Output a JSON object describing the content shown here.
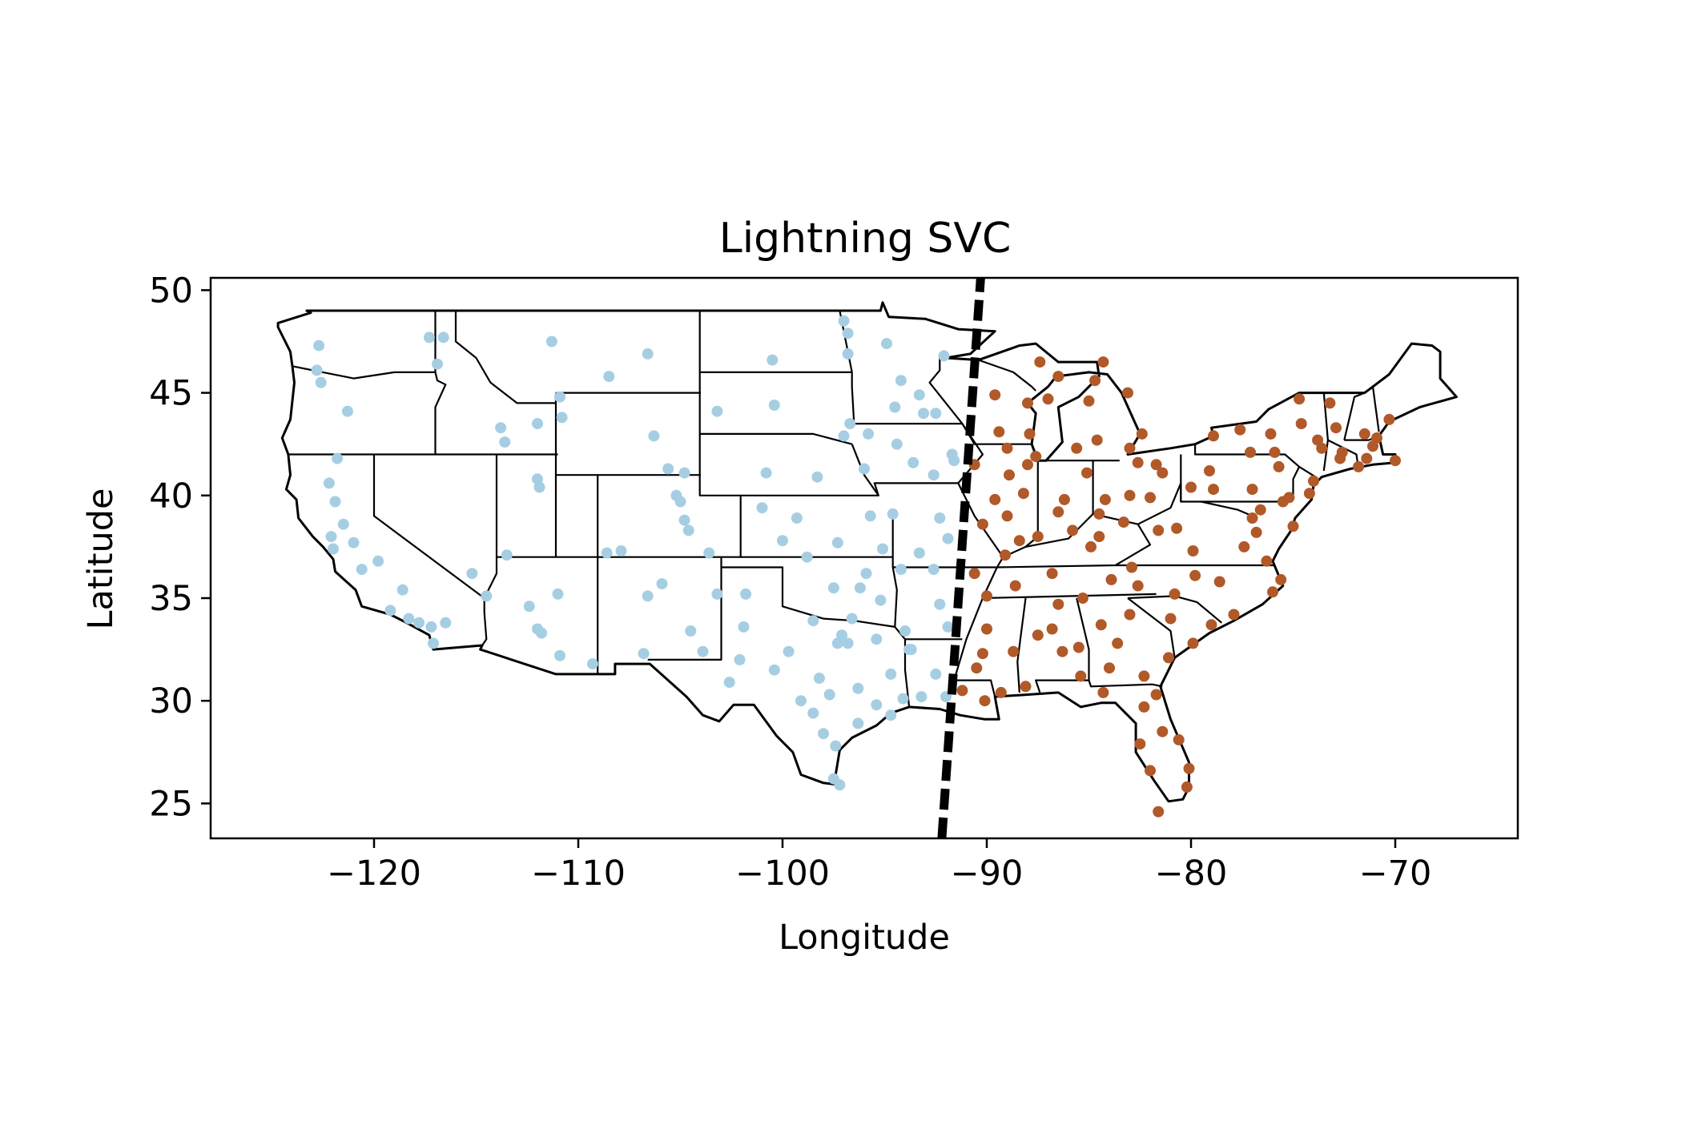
{
  "chart_data": {
    "type": "scatter",
    "title": "Lightning SVC",
    "xlabel": "Longitude",
    "ylabel": "Latitude",
    "xlim": [
      -128,
      -64
    ],
    "ylim": [
      23.3,
      50.6
    ],
    "x_ticks": [
      -120,
      -110,
      -100,
      -90,
      -80,
      -70
    ],
    "x_tick_labels": [
      "−120",
      "−110",
      "−100",
      "−90",
      "−80",
      "−70"
    ],
    "y_ticks": [
      25,
      30,
      35,
      40,
      45,
      50
    ],
    "y_tick_labels": [
      "25",
      "30",
      "35",
      "40",
      "45",
      "50"
    ],
    "grid": false,
    "legend": "none",
    "decision_boundary": {
      "style": "dashed",
      "color": "#000000",
      "points": [
        [
          -92.2,
          23.3
        ],
        [
          -90.3,
          50.6
        ]
      ]
    },
    "basemap": "US state boundaries (contiguous United States)",
    "series": [
      {
        "color": "#a6cee3",
        "points": [
          [
            -122.7,
            47.3
          ],
          [
            -122.8,
            46.1
          ],
          [
            -122.6,
            45.5
          ],
          [
            -121.3,
            44.1
          ],
          [
            -117.3,
            47.7
          ],
          [
            -116.6,
            47.7
          ],
          [
            -116.9,
            46.4
          ],
          [
            -111.3,
            47.5
          ],
          [
            -108.5,
            45.8
          ],
          [
            -106.6,
            46.9
          ],
          [
            -100.5,
            46.6
          ],
          [
            -110.9,
            44.8
          ],
          [
            -112.0,
            43.5
          ],
          [
            -113.8,
            43.3
          ],
          [
            -113.6,
            42.6
          ],
          [
            -110.8,
            43.8
          ],
          [
            -121.8,
            41.8
          ],
          [
            -122.2,
            40.6
          ],
          [
            -121.9,
            39.7
          ],
          [
            -121.5,
            38.6
          ],
          [
            -122.1,
            38.0
          ],
          [
            -122.0,
            37.4
          ],
          [
            -121.0,
            37.7
          ],
          [
            -120.6,
            36.4
          ],
          [
            -119.8,
            36.8
          ],
          [
            -118.6,
            35.4
          ],
          [
            -119.2,
            34.4
          ],
          [
            -118.3,
            34.0
          ],
          [
            -117.8,
            33.8
          ],
          [
            -117.2,
            33.6
          ],
          [
            -117.1,
            32.8
          ],
          [
            -116.5,
            33.8
          ],
          [
            -115.2,
            36.2
          ],
          [
            -114.5,
            35.1
          ],
          [
            -113.5,
            37.1
          ],
          [
            -112.0,
            40.8
          ],
          [
            -111.9,
            40.4
          ],
          [
            -112.0,
            33.5
          ],
          [
            -111.8,
            33.3
          ],
          [
            -110.9,
            32.2
          ],
          [
            -111.0,
            35.2
          ],
          [
            -112.4,
            34.6
          ],
          [
            -109.3,
            31.8
          ],
          [
            -106.6,
            35.1
          ],
          [
            -105.9,
            35.7
          ],
          [
            -106.8,
            32.3
          ],
          [
            -104.5,
            33.4
          ],
          [
            -108.6,
            37.2
          ],
          [
            -107.9,
            37.3
          ],
          [
            -105.0,
            39.7
          ],
          [
            -104.8,
            38.8
          ],
          [
            -104.6,
            38.3
          ],
          [
            -105.2,
            40.0
          ],
          [
            -104.8,
            41.1
          ],
          [
            -106.3,
            42.9
          ],
          [
            -105.6,
            41.3
          ],
          [
            -103.2,
            44.1
          ],
          [
            -100.4,
            44.4
          ],
          [
            -96.7,
            43.5
          ],
          [
            -97.0,
            42.9
          ],
          [
            -96.0,
            41.3
          ],
          [
            -98.3,
            40.9
          ],
          [
            -100.8,
            41.1
          ],
          [
            -101.8,
            35.2
          ],
          [
            -97.5,
            35.5
          ],
          [
            -95.9,
            36.2
          ],
          [
            -97.3,
            37.7
          ],
          [
            -95.7,
            39.0
          ],
          [
            -94.6,
            39.1
          ],
          [
            -101.9,
            33.6
          ],
          [
            -102.1,
            32.0
          ],
          [
            -99.7,
            32.4
          ],
          [
            -97.3,
            32.8
          ],
          [
            -96.8,
            32.8
          ],
          [
            -97.7,
            30.3
          ],
          [
            -98.5,
            29.4
          ],
          [
            -95.4,
            29.8
          ],
          [
            -97.4,
            27.8
          ],
          [
            -97.5,
            26.2
          ],
          [
            -97.2,
            25.9
          ],
          [
            -98.5,
            33.9
          ],
          [
            -94.0,
            33.4
          ],
          [
            -93.7,
            32.5
          ],
          [
            -93.2,
            30.2
          ],
          [
            -94.1,
            30.1
          ],
          [
            -92.3,
            34.7
          ],
          [
            -94.2,
            36.4
          ],
          [
            -93.3,
            37.2
          ],
          [
            -92.3,
            38.9
          ],
          [
            -93.6,
            41.6
          ],
          [
            -91.7,
            42.0
          ],
          [
            -93.3,
            44.9
          ],
          [
            -92.1,
            46.8
          ],
          [
            -94.2,
            45.6
          ],
          [
            -96.8,
            46.9
          ],
          [
            -96.8,
            47.9
          ],
          [
            -97.0,
            48.5
          ],
          [
            -94.9,
            47.4
          ],
          [
            -93.1,
            44.0
          ],
          [
            -92.5,
            44.0
          ],
          [
            -94.5,
            44.3
          ],
          [
            -95.8,
            43.0
          ],
          [
            -94.4,
            42.5
          ],
          [
            -92.6,
            41.0
          ],
          [
            -91.6,
            41.7
          ],
          [
            -96.2,
            35.5
          ],
          [
            -95.2,
            34.9
          ],
          [
            -98.2,
            31.1
          ],
          [
            -96.3,
            30.6
          ],
          [
            -94.7,
            31.3
          ],
          [
            -93.8,
            32.5
          ],
          [
            -92.5,
            31.3
          ],
          [
            -92.0,
            30.2
          ],
          [
            -91.9,
            33.6
          ],
          [
            -95.4,
            33.0
          ],
          [
            -96.6,
            34.0
          ],
          [
            -97.1,
            33.2
          ],
          [
            -99.1,
            30.0
          ],
          [
            -100.4,
            31.5
          ],
          [
            -98.0,
            28.4
          ],
          [
            -96.3,
            28.9
          ],
          [
            -94.7,
            29.3
          ],
          [
            -92.6,
            36.4
          ],
          [
            -91.9,
            37.9
          ],
          [
            -95.1,
            37.4
          ],
          [
            -98.8,
            37.0
          ],
          [
            -100.0,
            37.8
          ],
          [
            -101.0,
            39.4
          ],
          [
            -99.3,
            38.9
          ],
          [
            -103.6,
            37.2
          ],
          [
            -103.2,
            35.2
          ],
          [
            -103.9,
            32.4
          ],
          [
            -102.6,
            30.9
          ]
        ]
      },
      {
        "color": "#b15928",
        "points": [
          [
            -90.2,
            38.6
          ],
          [
            -89.6,
            39.8
          ],
          [
            -88.2,
            40.1
          ],
          [
            -87.6,
            41.9
          ],
          [
            -88.0,
            41.5
          ],
          [
            -89.0,
            42.3
          ],
          [
            -87.9,
            43.0
          ],
          [
            -89.4,
            43.1
          ],
          [
            -88.0,
            44.5
          ],
          [
            -89.6,
            44.9
          ],
          [
            -87.4,
            46.5
          ],
          [
            -84.3,
            46.5
          ],
          [
            -85.6,
            42.3
          ],
          [
            -83.0,
            42.3
          ],
          [
            -84.6,
            42.7
          ],
          [
            -86.2,
            39.8
          ],
          [
            -85.1,
            41.1
          ],
          [
            -87.5,
            38.0
          ],
          [
            -86.5,
            39.2
          ],
          [
            -84.5,
            39.1
          ],
          [
            -83.0,
            40.0
          ],
          [
            -81.7,
            41.5
          ],
          [
            -80.0,
            40.4
          ],
          [
            -84.2,
            39.8
          ],
          [
            -81.4,
            41.1
          ],
          [
            -82.6,
            41.6
          ],
          [
            -85.8,
            38.3
          ],
          [
            -84.5,
            38.0
          ],
          [
            -86.8,
            36.2
          ],
          [
            -90.0,
            35.1
          ],
          [
            -85.3,
            35.0
          ],
          [
            -83.9,
            35.9
          ],
          [
            -88.1,
            30.7
          ],
          [
            -86.8,
            33.5
          ],
          [
            -86.3,
            32.4
          ],
          [
            -90.2,
            32.3
          ],
          [
            -89.3,
            30.4
          ],
          [
            -90.1,
            30.0
          ],
          [
            -91.2,
            30.5
          ],
          [
            -84.4,
            33.7
          ],
          [
            -81.1,
            32.1
          ],
          [
            -83.6,
            32.8
          ],
          [
            -84.3,
            30.4
          ],
          [
            -81.7,
            30.3
          ],
          [
            -82.5,
            27.9
          ],
          [
            -81.4,
            28.5
          ],
          [
            -80.2,
            25.8
          ],
          [
            -80.1,
            26.7
          ],
          [
            -82.0,
            26.6
          ],
          [
            -81.6,
            24.6
          ],
          [
            -80.8,
            35.2
          ],
          [
            -78.6,
            35.8
          ],
          [
            -79.8,
            36.1
          ],
          [
            -82.6,
            35.6
          ],
          [
            -81.0,
            34.0
          ],
          [
            -79.9,
            32.8
          ],
          [
            -77.4,
            37.5
          ],
          [
            -76.3,
            36.8
          ],
          [
            -79.9,
            37.3
          ],
          [
            -77.0,
            38.9
          ],
          [
            -76.6,
            39.3
          ],
          [
            -75.2,
            39.9
          ],
          [
            -74.0,
            40.7
          ],
          [
            -73.8,
            42.7
          ],
          [
            -76.1,
            43.0
          ],
          [
            -77.6,
            43.2
          ],
          [
            -78.9,
            42.9
          ],
          [
            -71.1,
            42.4
          ],
          [
            -71.4,
            41.8
          ],
          [
            -72.7,
            41.8
          ],
          [
            -73.2,
            44.5
          ],
          [
            -70.3,
            43.7
          ],
          [
            -71.5,
            43.0
          ],
          [
            -72.6,
            42.1
          ],
          [
            -74.2,
            40.1
          ],
          [
            -75.5,
            39.7
          ],
          [
            -80.7,
            38.4
          ],
          [
            -81.6,
            38.3
          ],
          [
            -78.9,
            40.3
          ],
          [
            -77.0,
            40.3
          ],
          [
            -75.7,
            41.4
          ],
          [
            -74.6,
            43.5
          ],
          [
            -89.1,
            37.1
          ],
          [
            -88.6,
            35.6
          ],
          [
            -87.5,
            33.2
          ],
          [
            -85.5,
            32.6
          ],
          [
            -88.7,
            32.4
          ],
          [
            -82.3,
            29.7
          ],
          [
            -80.6,
            28.1
          ],
          [
            -82.9,
            36.5
          ],
          [
            -83.0,
            34.2
          ],
          [
            -87.0,
            44.7
          ],
          [
            -86.5,
            45.8
          ],
          [
            -84.7,
            45.6
          ],
          [
            -85.0,
            44.6
          ],
          [
            -83.1,
            45.0
          ],
          [
            -82.4,
            43.0
          ],
          [
            -77.1,
            42.1
          ],
          [
            -75.9,
            42.1
          ],
          [
            -79.1,
            41.2
          ],
          [
            -86.5,
            34.7
          ],
          [
            -85.4,
            31.2
          ],
          [
            -84.0,
            31.6
          ],
          [
            -82.3,
            31.2
          ],
          [
            -79.0,
            33.7
          ],
          [
            -77.9,
            34.2
          ],
          [
            -76.0,
            35.3
          ],
          [
            -75.6,
            35.9
          ],
          [
            -76.8,
            38.2
          ],
          [
            -75.0,
            38.5
          ],
          [
            -71.8,
            41.4
          ],
          [
            -70.0,
            41.7
          ],
          [
            -73.6,
            42.3
          ],
          [
            -72.9,
            43.3
          ],
          [
            -74.7,
            44.7
          ],
          [
            -70.9,
            42.8
          ],
          [
            -88.9,
            41.0
          ],
          [
            -90.6,
            41.5
          ],
          [
            -89.0,
            39.0
          ],
          [
            -88.4,
            37.8
          ],
          [
            -90.6,
            36.2
          ],
          [
            -90.0,
            33.5
          ],
          [
            -90.5,
            31.6
          ],
          [
            -84.9,
            37.5
          ],
          [
            -83.3,
            38.7
          ],
          [
            -82.0,
            39.9
          ]
        ]
      }
    ]
  }
}
